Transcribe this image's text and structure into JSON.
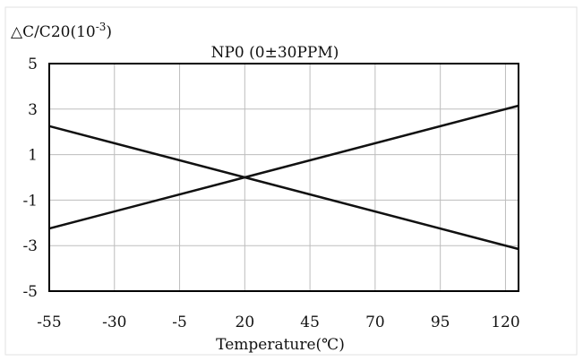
{
  "chart_data": {
    "type": "line",
    "ylabel_base": "△C/C20(10",
    "ylabel_exp": "-3",
    "ylabel_close": ")",
    "title": "NP0 (0±30PPM)",
    "xlabel": "Temperature(℃)",
    "xlim": [
      -55,
      125
    ],
    "ylim": [
      -5,
      5
    ],
    "x_ticks": [
      -55,
      -30,
      -5,
      20,
      45,
      70,
      95,
      120
    ],
    "y_ticks": [
      5,
      3,
      1,
      -1,
      -3,
      -5
    ],
    "grid": true,
    "series": [
      {
        "values": [
          {
            "x": -55,
            "y": 2.25
          },
          {
            "x": 20,
            "y": 0.0
          },
          {
            "x": 125,
            "y": -3.15
          }
        ]
      },
      {
        "values": [
          {
            "x": -55,
            "y": -2.25
          },
          {
            "x": 20,
            "y": 0.0
          },
          {
            "x": 125,
            "y": 3.15
          }
        ]
      }
    ],
    "line_color": "#111111",
    "grid_color": "#bdbdbd"
  }
}
